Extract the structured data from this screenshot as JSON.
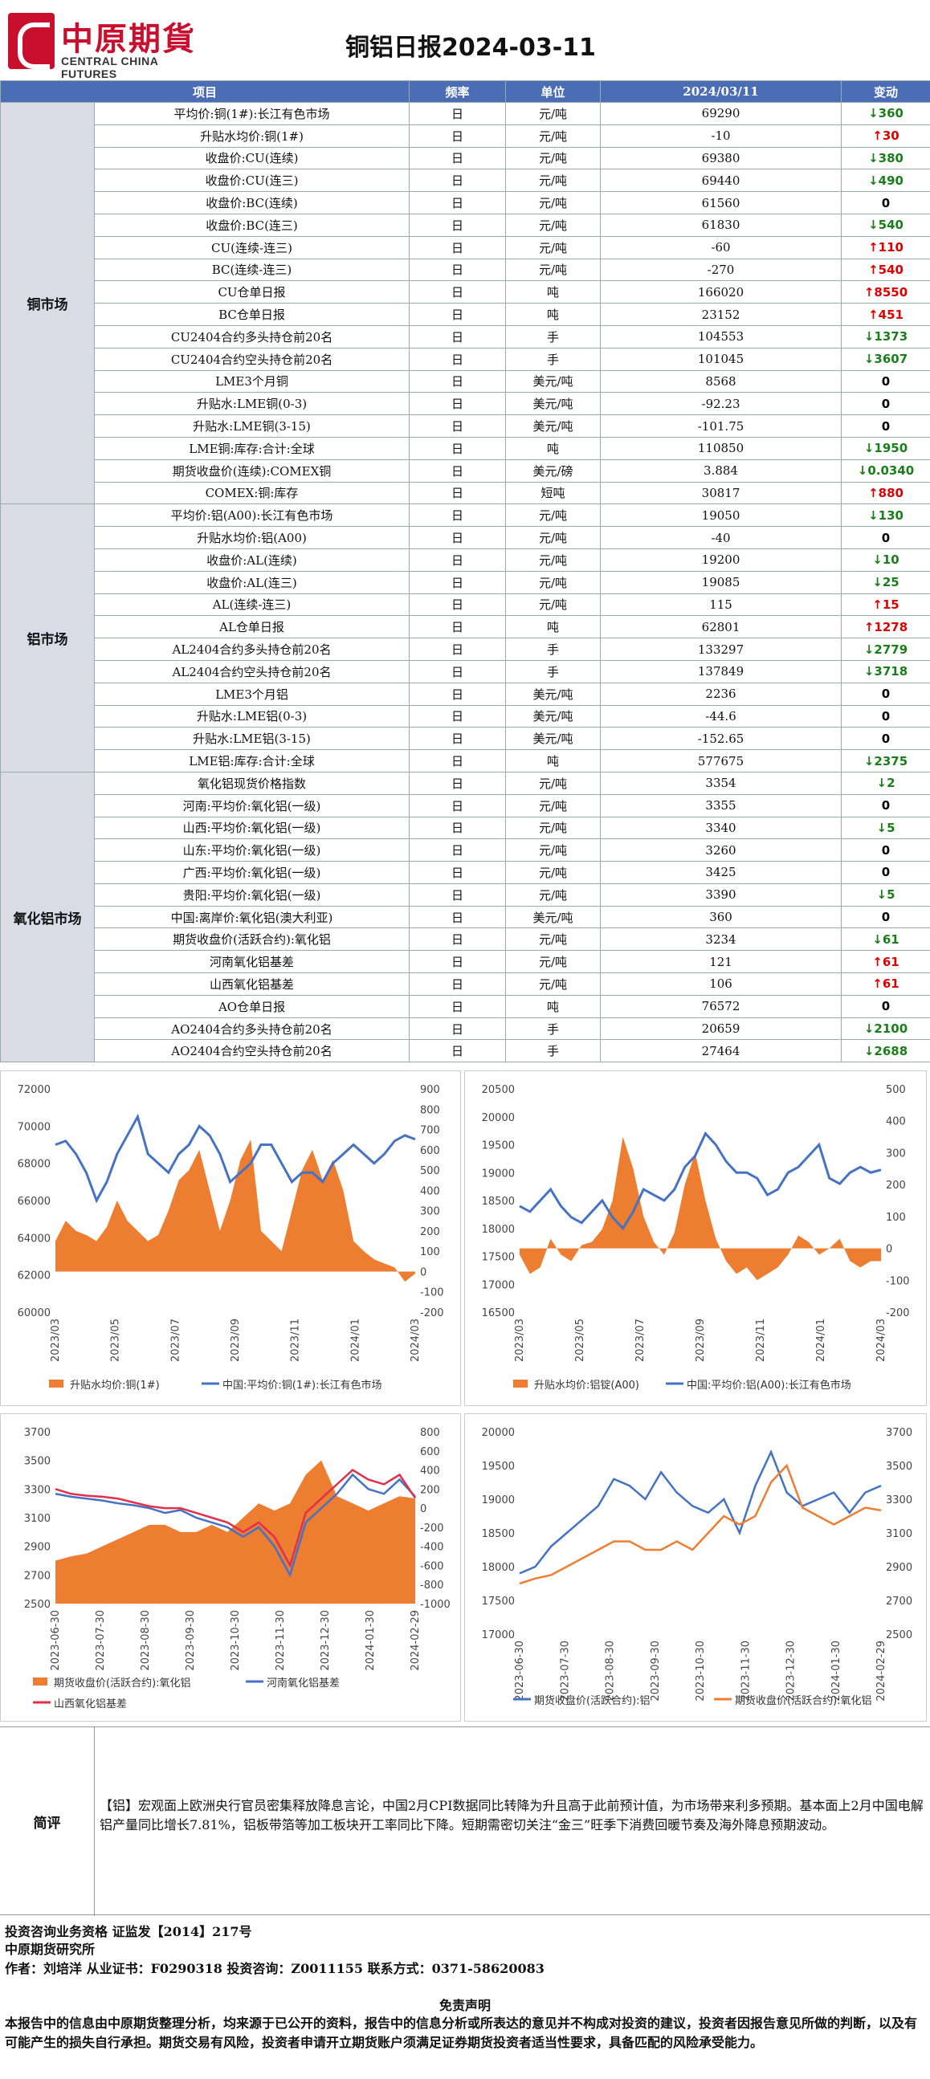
{
  "header": {
    "logo_cn": "中原期貨",
    "logo_en": "CENTRAL CHINA FUTURES",
    "title": "铜铝日报2024-03-11"
  },
  "table": {
    "headers": [
      "项目",
      "频率",
      "单位",
      "2024/03/11",
      "变动"
    ],
    "sections": [
      {
        "name": "铜市场",
        "rows": [
          [
            "平均价:铜(1#):长江有色市场",
            "日",
            "元/吨",
            "69290",
            "↓360",
            "dn"
          ],
          [
            "升贴水均价:铜(1#)",
            "日",
            "元/吨",
            "-10",
            "↑30",
            "up"
          ],
          [
            "收盘价:CU(连续)",
            "日",
            "元/吨",
            "69380",
            "↓380",
            "dn"
          ],
          [
            "收盘价:CU(连三)",
            "日",
            "元/吨",
            "69440",
            "↓490",
            "dn"
          ],
          [
            "收盘价:BC(连续)",
            "日",
            "元/吨",
            "61560",
            "0",
            "zr"
          ],
          [
            "收盘价:BC(连三)",
            "日",
            "元/吨",
            "61830",
            "↓540",
            "dn"
          ],
          [
            "CU(连续-连三)",
            "日",
            "元/吨",
            "-60",
            "↑110",
            "up"
          ],
          [
            "BC(连续-连三)",
            "日",
            "元/吨",
            "-270",
            "↑540",
            "up"
          ],
          [
            "CU仓单日报",
            "日",
            "吨",
            "166020",
            "↑8550",
            "up"
          ],
          [
            "BC仓单日报",
            "日",
            "吨",
            "23152",
            "↑451",
            "up"
          ],
          [
            "CU2404合约多头持仓前20名",
            "日",
            "手",
            "104553",
            "↓1373",
            "dn"
          ],
          [
            "CU2404合约空头持仓前20名",
            "日",
            "手",
            "101045",
            "↓3607",
            "dn"
          ],
          [
            "LME3个月铜",
            "日",
            "美元/吨",
            "8568",
            "0",
            "zr"
          ],
          [
            "升贴水:LME铜(0-3)",
            "日",
            "美元/吨",
            "-92.23",
            "0",
            "zr"
          ],
          [
            "升贴水:LME铜(3-15)",
            "日",
            "美元/吨",
            "-101.75",
            "0",
            "zr"
          ],
          [
            "LME铜:库存:合计:全球",
            "日",
            "吨",
            "110850",
            "↓1950",
            "dn"
          ],
          [
            "期货收盘价(连续):COMEX铜",
            "日",
            "美元/磅",
            "3.884",
            "↓0.0340",
            "dn"
          ],
          [
            "COMEX:铜:库存",
            "日",
            "短吨",
            "30817",
            "↑880",
            "up"
          ]
        ]
      },
      {
        "name": "铝市场",
        "rows": [
          [
            "平均价:铝(A00):长江有色市场",
            "日",
            "元/吨",
            "19050",
            "↓130",
            "dn"
          ],
          [
            "升贴水均价:铝(A00)",
            "日",
            "元/吨",
            "-40",
            "0",
            "zr"
          ],
          [
            "收盘价:AL(连续)",
            "日",
            "元/吨",
            "19200",
            "↓10",
            "dn"
          ],
          [
            "收盘价:AL(连三)",
            "日",
            "元/吨",
            "19085",
            "↓25",
            "dn"
          ],
          [
            "AL(连续-连三)",
            "日",
            "元/吨",
            "115",
            "↑15",
            "up"
          ],
          [
            "AL仓单日报",
            "日",
            "吨",
            "62801",
            "↑1278",
            "up"
          ],
          [
            "AL2404合约多头持仓前20名",
            "日",
            "手",
            "133297",
            "↓2779",
            "dn"
          ],
          [
            "AL2404合约空头持仓前20名",
            "日",
            "手",
            "137849",
            "↓3718",
            "dn"
          ],
          [
            "LME3个月铝",
            "日",
            "美元/吨",
            "2236",
            "0",
            "zr"
          ],
          [
            "升贴水:LME铝(0-3)",
            "日",
            "美元/吨",
            "-44.6",
            "0",
            "zr"
          ],
          [
            "升贴水:LME铝(3-15)",
            "日",
            "美元/吨",
            "-152.65",
            "0",
            "zr"
          ],
          [
            "LME铝:库存:合计:全球",
            "日",
            "吨",
            "577675",
            "↓2375",
            "dn"
          ]
        ]
      },
      {
        "name": "氧化铝市场",
        "rows": [
          [
            "氧化铝现货价格指数",
            "日",
            "元/吨",
            "3354",
            "↓2",
            "dn"
          ],
          [
            "河南:平均价:氧化铝(一级)",
            "日",
            "元/吨",
            "3355",
            "0",
            "zr"
          ],
          [
            "山西:平均价:氧化铝(一级)",
            "日",
            "元/吨",
            "3340",
            "↓5",
            "dn"
          ],
          [
            "山东:平均价:氧化铝(一级)",
            "日",
            "元/吨",
            "3260",
            "0",
            "zr"
          ],
          [
            "广西:平均价:氧化铝(一级)",
            "日",
            "元/吨",
            "3425",
            "0",
            "zr"
          ],
          [
            "贵阳:平均价:氧化铝(一级)",
            "日",
            "元/吨",
            "3390",
            "↓5",
            "dn"
          ],
          [
            "中国:离岸价:氧化铝(澳大利亚)",
            "日",
            "美元/吨",
            "360",
            "0",
            "zr"
          ],
          [
            "期货收盘价(活跃合约):氧化铝",
            "日",
            "元/吨",
            "3234",
            "↓61",
            "dn"
          ],
          [
            "河南氧化铝基差",
            "日",
            "元/吨",
            "121",
            "↑61",
            "up"
          ],
          [
            "山西氧化铝基差",
            "日",
            "元/吨",
            "106",
            "↑61",
            "up"
          ],
          [
            "AO仓单日报",
            "日",
            "吨",
            "76572",
            "0",
            "zr"
          ],
          [
            "AO2404合约多头持仓前20名",
            "日",
            "手",
            "20659",
            "↓2100",
            "dn"
          ],
          [
            "AO2404合约空头持仓前20名",
            "日",
            "手",
            "27464",
            "↓2688",
            "dn"
          ]
        ]
      }
    ]
  },
  "chart_data": [
    {
      "type": "area+line",
      "ylim_left": [
        60000,
        72000
      ],
      "ylim_right": [
        -200,
        900
      ],
      "xticks": [
        "2023/03",
        "2023/05",
        "2023/07",
        "2023/09",
        "2023/11",
        "2024/01",
        "2024/03"
      ],
      "yticks_left": [
        "60000",
        "62000",
        "64000",
        "66000",
        "68000",
        "70000",
        "72000"
      ],
      "yticks_right": [
        "-200",
        "-100",
        "0",
        "100",
        "200",
        "300",
        "400",
        "500",
        "600",
        "700",
        "800",
        "900"
      ],
      "series": [
        {
          "name": "升贴水均价:铜(1#)",
          "color": "#ed7d31"
        },
        {
          "name": "中国:平均价:铜(1#):长江有色市场",
          "color": "#4472c4"
        }
      ],
      "line": [
        69000,
        69200,
        68500,
        67500,
        66000,
        67000,
        68500,
        69500,
        70500,
        68500,
        68000,
        67500,
        68500,
        69000,
        70000,
        69500,
        68500,
        67000,
        67500,
        68000,
        69000,
        69000,
        68000,
        67000,
        67500,
        67500,
        67000,
        68000,
        68500,
        69000,
        68500,
        68000,
        68500,
        69200,
        69500,
        69290
      ],
      "area": [
        150,
        250,
        200,
        180,
        150,
        220,
        350,
        250,
        200,
        150,
        180,
        300,
        450,
        500,
        600,
        400,
        200,
        350,
        550,
        650,
        200,
        150,
        100,
        300,
        500,
        600,
        450,
        550,
        400,
        150,
        100,
        60,
        40,
        20,
        -50,
        -10
      ]
    },
    {
      "type": "area+line",
      "ylim_left": [
        16500,
        20500
      ],
      "ylim_right": [
        -200,
        500
      ],
      "xticks": [
        "2023/03",
        "2023/05",
        "2023/07",
        "2023/09",
        "2023/11",
        "2024/01",
        "2024/03"
      ],
      "yticks_left": [
        "16500",
        "17000",
        "17500",
        "18000",
        "18500",
        "19000",
        "19500",
        "20000",
        "20500"
      ],
      "yticks_right": [
        "-200",
        "-100",
        "0",
        "100",
        "200",
        "300",
        "400",
        "500"
      ],
      "series": [
        {
          "name": "升贴水均价:铝锭(A00)",
          "color": "#ed7d31"
        },
        {
          "name": "中国:平均价:铝(A00):长江有色市场",
          "color": "#4472c4"
        }
      ],
      "line": [
        18400,
        18300,
        18500,
        18700,
        18400,
        18200,
        18100,
        18300,
        18500,
        18200,
        18000,
        18300,
        18700,
        18600,
        18500,
        18700,
        19100,
        19300,
        19700,
        19500,
        19200,
        19000,
        19000,
        18900,
        18600,
        18700,
        19000,
        19100,
        19300,
        19500,
        18900,
        18800,
        19000,
        19100,
        19000,
        19050
      ],
      "area": [
        -20,
        -80,
        -60,
        30,
        -20,
        -40,
        10,
        20,
        60,
        150,
        350,
        250,
        100,
        20,
        -20,
        50,
        200,
        300,
        150,
        30,
        -40,
        -80,
        -60,
        -100,
        -80,
        -60,
        -20,
        40,
        20,
        -20,
        0,
        30,
        -40,
        -60,
        -40,
        -40
      ]
    },
    {
      "type": "area+lines",
      "ylim_left": [
        2500,
        3700
      ],
      "ylim_right": [
        -1000,
        800
      ],
      "xticks": [
        "2023-06-30",
        "2023-07-30",
        "2023-08-30",
        "2023-09-30",
        "2023-10-30",
        "2023-11-30",
        "2023-12-30",
        "2024-01-30",
        "2024-02-29"
      ],
      "yticks_left": [
        "2500",
        "2700",
        "2900",
        "3100",
        "3300",
        "3500",
        "3700"
      ],
      "yticks_right": [
        "-1000",
        "-800",
        "-600",
        "-400",
        "-200",
        "0",
        "200",
        "400",
        "600",
        "800"
      ],
      "series": [
        {
          "name": "期货收盘价(活跃合约):氧化铝",
          "color": "#ed7d31"
        },
        {
          "name": "河南氧化铝基差",
          "color": "#4472c4"
        },
        {
          "name": "山西氧化铝基差",
          "color": "#e0304b"
        }
      ],
      "area": [
        2800,
        2830,
        2850,
        2900,
        2950,
        3000,
        3050,
        3050,
        3000,
        3000,
        3050,
        3000,
        3100,
        3200,
        3150,
        3200,
        3400,
        3500,
        3250,
        3200,
        3150,
        3200,
        3250,
        3234
      ],
      "line1": [
        150,
        120,
        100,
        80,
        50,
        30,
        0,
        -50,
        -20,
        -100,
        -150,
        -200,
        -300,
        -200,
        -400,
        -700,
        -150,
        0,
        150,
        350,
        200,
        150,
        300,
        121
      ],
      "line2": [
        200,
        150,
        130,
        120,
        100,
        60,
        20,
        0,
        0,
        -50,
        -100,
        -150,
        -250,
        -150,
        -300,
        -600,
        -50,
        100,
        250,
        400,
        300,
        250,
        350,
        106
      ]
    },
    {
      "type": "dual-line",
      "ylim_left": [
        17000,
        20000
      ],
      "ylim_right": [
        2500,
        3700
      ],
      "xticks": [
        "2023-06-30",
        "2023-07-30",
        "2023-08-30",
        "2023-09-30",
        "2023-10-30",
        "2023-11-30",
        "2023-12-30",
        "2024-01-30",
        "2024-02-29"
      ],
      "yticks_left": [
        "17000",
        "17500",
        "18000",
        "18500",
        "19000",
        "19500",
        "20000"
      ],
      "yticks_right": [
        "2500",
        "2700",
        "2900",
        "3100",
        "3300",
        "3500",
        "3700"
      ],
      "series": [
        {
          "name": "期货收盘价(活跃合约):铝",
          "color": "#4472c4"
        },
        {
          "name": "期货收盘价(活跃合约):氧化铝",
          "color": "#ed7d31"
        }
      ],
      "line1": [
        17900,
        18000,
        18300,
        18500,
        18700,
        18900,
        19300,
        19200,
        19000,
        19400,
        19100,
        18900,
        18800,
        19000,
        18500,
        19200,
        19700,
        19100,
        18900,
        19000,
        19100,
        18800,
        19100,
        19200
      ],
      "line2": [
        2800,
        2830,
        2850,
        2900,
        2950,
        3000,
        3050,
        3050,
        3000,
        3000,
        3050,
        3000,
        3100,
        3200,
        3150,
        3200,
        3400,
        3500,
        3250,
        3200,
        3150,
        3200,
        3250,
        3234
      ]
    }
  ],
  "comment": {
    "label": "简评",
    "text": "【铝】宏观面上欧洲央行官员密集释放降息言论，中国2月CPI数据同比转降为升且高于此前预计值，为市场带来利多预期。基本面上2月中国电解铝产量同比增长7.81%，铝板带箔等加工板块开工率同比下降。短期需密切关注“金三”旺季下消费回暖节奏及海外降息预期波动。"
  },
  "footer": {
    "line1": "投资咨询业务资格   证监发【2014】217号",
    "line2": "中原期货研究所",
    "line3": "作者：刘培洋      从业证书：F0290318      投资咨询：Z0011155      联系方式：0371-58620083",
    "disclaimer_title": "免责声明",
    "disclaimer": "本报告中的信息由中原期货整理分析，均来源于已公开的资料，报告中的信息分析或所表达的意见并不构成对投资的建议，投资者因报告意见所做的判断，以及有可能产生的损失自行承担。期货交易有风险，投资者申请开立期货账户须满足证券期货投资者适当性要求，具备匹配的风险承受能力。"
  }
}
